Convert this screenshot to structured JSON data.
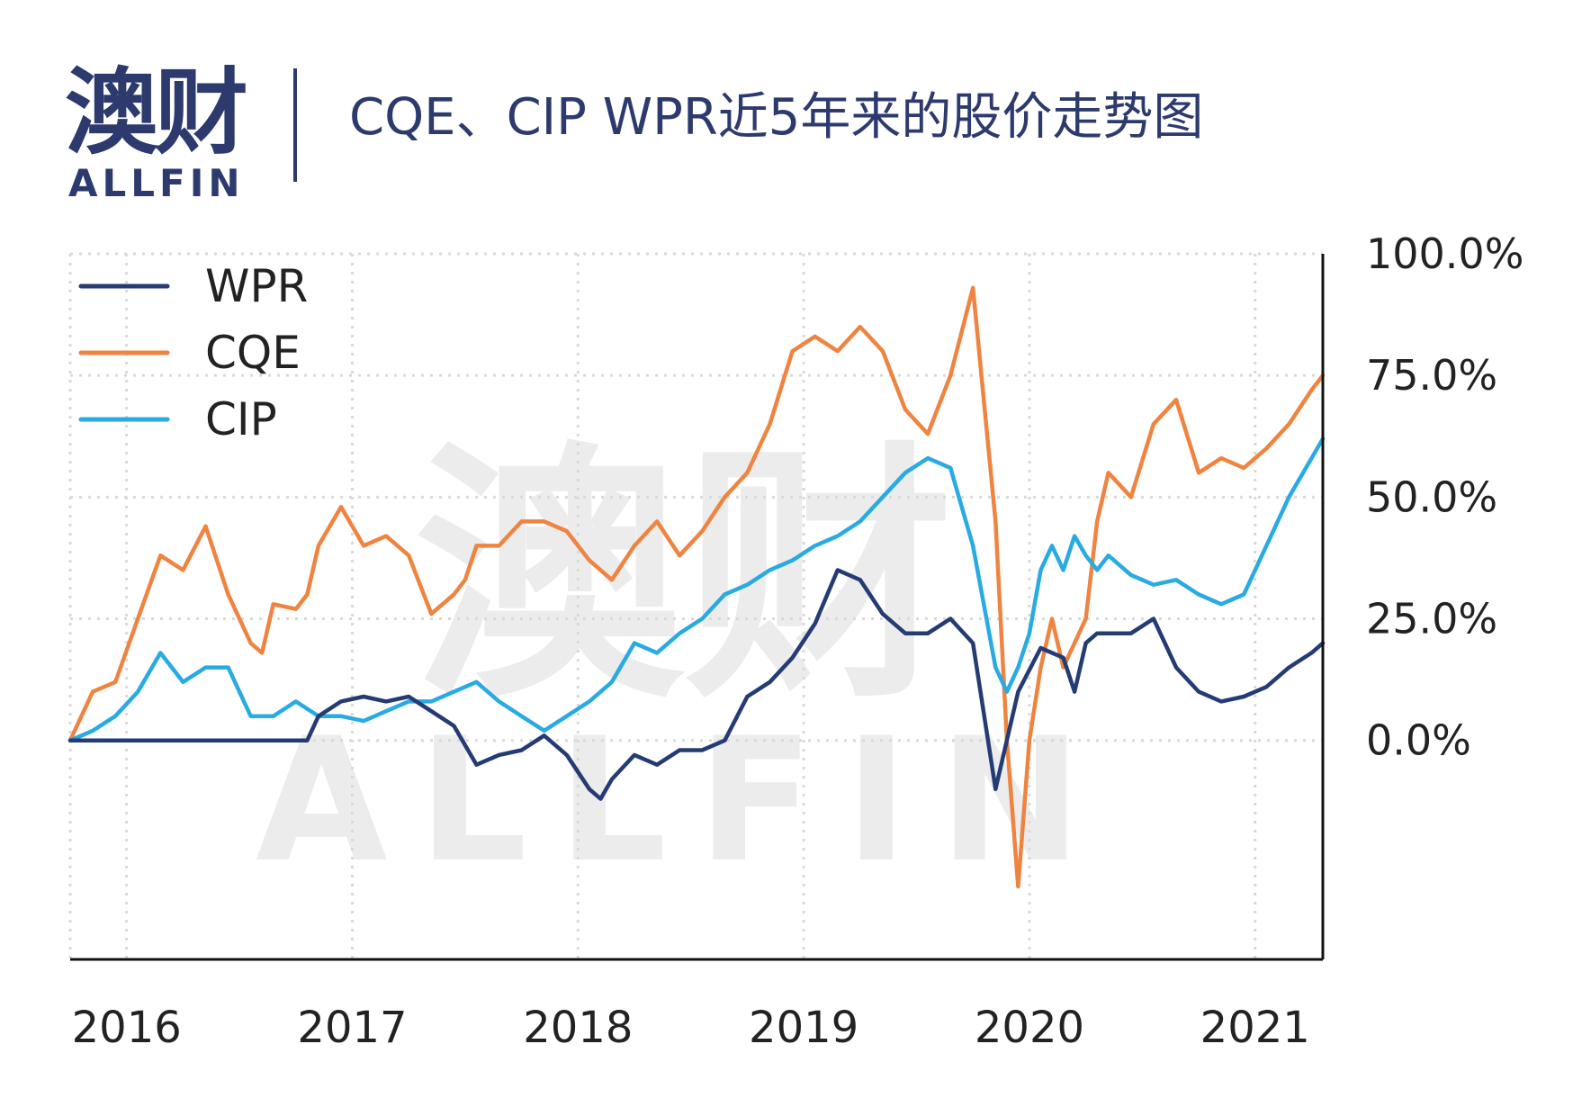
{
  "logo": {
    "cn": "澳财",
    "en": "ALLFIN",
    "watermark_cn": "澳财",
    "watermark_en": "ALLFIN"
  },
  "title": "CQE、CIP WPR近5年来的股价走势图",
  "colors": {
    "WPR": "#253b74",
    "CQE": "#ef8441",
    "CIP": "#29abe2",
    "brand": "#2c3a6e"
  },
  "chart_data": {
    "type": "line",
    "x_unit": "year",
    "xlim": [
      2016.0,
      2021.55
    ],
    "ylim": [
      -0.45,
      1.0
    ],
    "x_ticks": [
      {
        "value": 2016.25,
        "label": "2016"
      },
      {
        "value": 2017.25,
        "label": "2017"
      },
      {
        "value": 2018.25,
        "label": "2018"
      },
      {
        "value": 2019.25,
        "label": "2019"
      },
      {
        "value": 2020.25,
        "label": "2020"
      },
      {
        "value": 2021.25,
        "label": "2021"
      }
    ],
    "y_ticks": [
      {
        "value": 0.0,
        "label": "0.0%"
      },
      {
        "value": 0.25,
        "label": "25.0%"
      },
      {
        "value": 0.5,
        "label": "50.0%"
      },
      {
        "value": 0.75,
        "label": "75.0%"
      },
      {
        "value": 1.0,
        "label": "100.0%"
      }
    ],
    "grid": true,
    "legend_position": "top-left",
    "series": [
      {
        "name": "WPR",
        "x": [
          2016.0,
          2016.1,
          2016.2,
          2016.3,
          2016.4,
          2016.5,
          2016.6,
          2016.7,
          2016.8,
          2016.9,
          2017.0,
          2017.05,
          2017.1,
          2017.2,
          2017.3,
          2017.4,
          2017.5,
          2017.6,
          2017.7,
          2017.8,
          2017.9,
          2018.0,
          2018.1,
          2018.2,
          2018.3,
          2018.35,
          2018.4,
          2018.5,
          2018.6,
          2018.7,
          2018.8,
          2018.9,
          2019.0,
          2019.1,
          2019.2,
          2019.3,
          2019.4,
          2019.5,
          2019.6,
          2019.7,
          2019.8,
          2019.9,
          2020.0,
          2020.1,
          2020.2,
          2020.3,
          2020.4,
          2020.45,
          2020.5,
          2020.55,
          2020.6,
          2020.7,
          2020.8,
          2020.9,
          2021.0,
          2021.1,
          2021.2,
          2021.3,
          2021.4,
          2021.5,
          2021.55
        ],
        "y": [
          0.0,
          0.0,
          0.0,
          0.0,
          0.0,
          0.0,
          0.0,
          0.0,
          0.0,
          0.0,
          0.0,
          0.0,
          0.05,
          0.08,
          0.09,
          0.08,
          0.09,
          0.06,
          0.03,
          -0.05,
          -0.03,
          -0.02,
          0.01,
          -0.03,
          -0.1,
          -0.12,
          -0.08,
          -0.03,
          -0.05,
          -0.02,
          -0.02,
          0.0,
          0.09,
          0.12,
          0.17,
          0.24,
          0.35,
          0.33,
          0.26,
          0.22,
          0.22,
          0.25,
          0.2,
          -0.1,
          0.1,
          0.19,
          0.17,
          0.1,
          0.2,
          0.22,
          0.22,
          0.22,
          0.25,
          0.15,
          0.1,
          0.08,
          0.09,
          0.11,
          0.15,
          0.18,
          0.2
        ]
      },
      {
        "name": "CQE",
        "x": [
          2016.0,
          2016.05,
          2016.1,
          2016.2,
          2016.3,
          2016.4,
          2016.5,
          2016.6,
          2016.7,
          2016.8,
          2016.85,
          2016.9,
          2017.0,
          2017.05,
          2017.1,
          2017.2,
          2017.3,
          2017.4,
          2017.5,
          2017.6,
          2017.7,
          2017.75,
          2017.8,
          2017.9,
          2018.0,
          2018.1,
          2018.2,
          2018.3,
          2018.4,
          2018.5,
          2018.6,
          2018.7,
          2018.8,
          2018.9,
          2019.0,
          2019.1,
          2019.2,
          2019.3,
          2019.4,
          2019.5,
          2019.6,
          2019.7,
          2019.8,
          2019.9,
          2020.0,
          2020.1,
          2020.15,
          2020.2,
          2020.25,
          2020.3,
          2020.35,
          2020.4,
          2020.45,
          2020.5,
          2020.55,
          2020.6,
          2020.7,
          2020.8,
          2020.9,
          2021.0,
          2021.1,
          2021.2,
          2021.3,
          2021.4,
          2021.5,
          2021.55
        ],
        "y": [
          0.0,
          0.05,
          0.1,
          0.12,
          0.25,
          0.38,
          0.35,
          0.44,
          0.3,
          0.2,
          0.18,
          0.28,
          0.27,
          0.3,
          0.4,
          0.48,
          0.4,
          0.42,
          0.38,
          0.26,
          0.3,
          0.33,
          0.4,
          0.4,
          0.45,
          0.45,
          0.43,
          0.37,
          0.33,
          0.4,
          0.45,
          0.38,
          0.43,
          0.5,
          0.55,
          0.65,
          0.8,
          0.83,
          0.8,
          0.85,
          0.8,
          0.68,
          0.63,
          0.75,
          0.93,
          0.45,
          0.0,
          -0.3,
          0.0,
          0.15,
          0.25,
          0.15,
          0.2,
          0.25,
          0.45,
          0.55,
          0.5,
          0.65,
          0.7,
          0.55,
          0.58,
          0.56,
          0.6,
          0.65,
          0.72,
          0.75
        ]
      },
      {
        "name": "CIP",
        "x": [
          2016.0,
          2016.1,
          2016.2,
          2016.3,
          2016.4,
          2016.5,
          2016.6,
          2016.7,
          2016.8,
          2016.9,
          2017.0,
          2017.1,
          2017.2,
          2017.3,
          2017.4,
          2017.5,
          2017.6,
          2017.7,
          2017.8,
          2017.9,
          2018.0,
          2018.1,
          2018.2,
          2018.3,
          2018.4,
          2018.5,
          2018.6,
          2018.7,
          2018.8,
          2018.9,
          2019.0,
          2019.1,
          2019.2,
          2019.3,
          2019.4,
          2019.5,
          2019.6,
          2019.7,
          2019.8,
          2019.9,
          2020.0,
          2020.1,
          2020.15,
          2020.2,
          2020.25,
          2020.3,
          2020.35,
          2020.4,
          2020.45,
          2020.5,
          2020.55,
          2020.6,
          2020.7,
          2020.8,
          2020.9,
          2021.0,
          2021.1,
          2021.2,
          2021.3,
          2021.4,
          2021.5,
          2021.55
        ],
        "y": [
          0.0,
          0.02,
          0.05,
          0.1,
          0.18,
          0.12,
          0.15,
          0.15,
          0.05,
          0.05,
          0.08,
          0.05,
          0.05,
          0.04,
          0.06,
          0.08,
          0.08,
          0.1,
          0.12,
          0.08,
          0.05,
          0.02,
          0.05,
          0.08,
          0.12,
          0.2,
          0.18,
          0.22,
          0.25,
          0.3,
          0.32,
          0.35,
          0.37,
          0.4,
          0.42,
          0.45,
          0.5,
          0.55,
          0.58,
          0.56,
          0.4,
          0.15,
          0.1,
          0.15,
          0.22,
          0.35,
          0.4,
          0.35,
          0.42,
          0.38,
          0.35,
          0.38,
          0.34,
          0.32,
          0.33,
          0.3,
          0.28,
          0.3,
          0.4,
          0.5,
          0.58,
          0.62
        ]
      }
    ]
  }
}
